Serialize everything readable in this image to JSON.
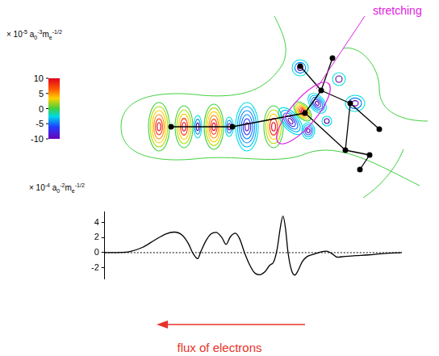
{
  "contour_map": {
    "colorbar": {
      "label": [
        {
          "t": "× 10"
        },
        {
          "sup": "-5"
        },
        {
          "t": " a"
        },
        {
          "sub": "0"
        },
        {
          "sup": "-3"
        },
        {
          "t": "m"
        },
        {
          "sub": "e"
        },
        {
          "sup": "-1/2"
        }
      ],
      "range": [
        -10,
        10
      ],
      "ticks": [
        10,
        5,
        0,
        -5,
        -10
      ]
    },
    "annotation": "stretching"
  },
  "chart_data": {
    "type": "line",
    "ylabel": [
      {
        "t": "× 10"
      },
      {
        "sup": "-4"
      },
      {
        "t": " a"
      },
      {
        "sub": "0"
      },
      {
        "sup": "-2"
      },
      {
        "t": "m"
      },
      {
        "sub": "e"
      },
      {
        "sup": "-1/2"
      }
    ],
    "x": [
      0,
      15,
      30,
      45,
      60,
      73,
      83,
      93,
      100,
      105,
      111,
      115,
      121,
      127,
      133,
      140,
      145,
      150,
      156,
      161,
      167,
      173,
      179,
      185,
      191,
      197,
      202,
      206,
      210,
      213,
      216,
      219,
      223,
      227,
      231,
      236,
      242,
      250,
      258,
      265,
      271,
      278,
      287,
      300,
      315,
      330,
      345,
      355
    ],
    "values": [
      0,
      0.02,
      0.15,
      0.7,
      1.7,
      2.5,
      2.75,
      2.3,
      1.2,
      0.0,
      -0.8,
      0.2,
      1.6,
      2.5,
      2.7,
      2.0,
      1.1,
      2.1,
      2.6,
      1.9,
      0.0,
      -1.6,
      -2.7,
      -2.95,
      -2.6,
      -1.7,
      -1.2,
      0.5,
      3.5,
      4.9,
      3.2,
      0.0,
      -2.3,
      -3.0,
      -2.4,
      -1.2,
      -0.5,
      -0.2,
      0.1,
      0.2,
      -0.1,
      -0.6,
      -0.5,
      -0.4,
      -0.3,
      -0.15,
      -0.05,
      0
    ],
    "color": "#000000",
    "xlim": [
      0,
      355
    ],
    "ylim": [
      -3.5,
      5.5
    ],
    "yticks": [
      -2,
      0,
      2,
      4
    ],
    "baseline": 0,
    "grid": false,
    "tick_labels": "y"
  },
  "arrow_label": "flux of electrons"
}
